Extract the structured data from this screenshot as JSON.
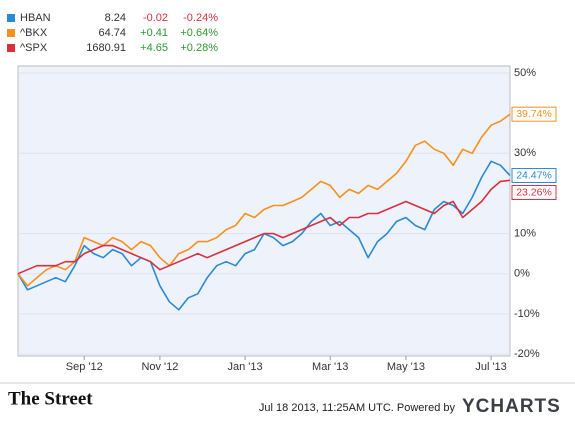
{
  "chart_data": {
    "type": "line",
    "categories": [
      null,
      null,
      null,
      null,
      null,
      null,
      null,
      "Sep '12",
      null,
      null,
      null,
      null,
      null,
      null,
      null,
      "Nov '12",
      null,
      null,
      null,
      null,
      null,
      null,
      null,
      null,
      "Jan '13",
      null,
      null,
      null,
      null,
      null,
      null,
      null,
      null,
      "Mar '13",
      null,
      null,
      null,
      null,
      null,
      null,
      null,
      "May '13",
      null,
      null,
      null,
      null,
      null,
      null,
      null,
      null,
      "Jul '13",
      null,
      null
    ],
    "series": [
      {
        "name": "HBAN",
        "price": "8.24",
        "change": "-0.02",
        "change_pct": "-0.24%",
        "color": "#2a8ad6",
        "values": [
          0,
          -4,
          -3,
          -2,
          -1,
          -2,
          2,
          7,
          5,
          4,
          6,
          5,
          2,
          4,
          3,
          -3,
          -7,
          -9,
          -6,
          -5,
          -1,
          2,
          3,
          2,
          5,
          6,
          10,
          9,
          7,
          8,
          10,
          13,
          15,
          12,
          13,
          11,
          9,
          4,
          8,
          10,
          13,
          14,
          12,
          11,
          16,
          18,
          17,
          15,
          19,
          24,
          28,
          27,
          24.47
        ],
        "value_labels": [
          null,
          null,
          null,
          null,
          null,
          null,
          null,
          null,
          null,
          null,
          null,
          null,
          null,
          null,
          null,
          null,
          null,
          null,
          null,
          null,
          null,
          null,
          null,
          null,
          null,
          null,
          null,
          null,
          null,
          null,
          null,
          null,
          null,
          null,
          null,
          null,
          null,
          null,
          null,
          null,
          null,
          null,
          null,
          null,
          null,
          null,
          null,
          null,
          null,
          null,
          null,
          null,
          "24.47%"
        ]
      },
      {
        "name": "^BKX",
        "price": "64.74",
        "change": "+0.41",
        "change_pct": "+0.64%",
        "color": "#f7901e",
        "values": [
          0,
          -3,
          -1,
          1,
          2,
          1,
          3,
          9,
          8,
          7,
          9,
          8,
          6,
          8,
          7,
          4,
          2,
          5,
          6,
          8,
          8,
          9,
          11,
          12,
          15,
          14,
          16,
          17,
          17,
          18,
          19,
          21,
          23,
          22,
          19,
          21,
          20,
          22,
          21,
          23,
          25,
          28,
          32,
          33,
          31,
          30,
          27,
          31,
          30,
          34,
          37,
          38,
          39.74
        ],
        "value_labels": [
          null,
          null,
          null,
          null,
          null,
          null,
          null,
          null,
          null,
          null,
          null,
          null,
          null,
          null,
          null,
          null,
          null,
          null,
          null,
          null,
          null,
          null,
          null,
          null,
          null,
          null,
          null,
          null,
          null,
          null,
          null,
          null,
          null,
          null,
          null,
          null,
          null,
          null,
          null,
          null,
          null,
          null,
          null,
          null,
          null,
          null,
          null,
          null,
          null,
          null,
          null,
          null,
          "39.74%"
        ]
      },
      {
        "name": "^SPX",
        "price": "1680.91",
        "change": "+4.65",
        "change_pct": "+0.28%",
        "color": "#d9303d",
        "values": [
          0,
          1,
          2,
          2,
          2,
          3,
          3,
          5,
          6,
          7,
          7,
          6,
          5,
          4,
          3,
          1,
          2,
          3,
          4,
          5,
          4,
          5,
          6,
          7,
          8,
          9,
          10,
          10,
          9,
          10,
          11,
          12,
          13,
          14,
          12,
          14,
          14,
          15,
          15,
          16,
          17,
          18,
          17,
          16,
          15,
          17,
          18,
          14,
          16,
          18,
          21,
          23,
          23.26
        ],
        "value_labels": [
          null,
          null,
          null,
          null,
          null,
          null,
          null,
          null,
          null,
          null,
          null,
          null,
          null,
          null,
          null,
          null,
          null,
          null,
          null,
          null,
          null,
          null,
          null,
          null,
          null,
          null,
          null,
          null,
          null,
          null,
          null,
          null,
          null,
          null,
          null,
          null,
          null,
          null,
          null,
          null,
          null,
          null,
          null,
          null,
          null,
          null,
          null,
          null,
          null,
          null,
          null,
          null,
          "23.26%"
        ]
      }
    ],
    "ylim": [
      -20,
      50
    ],
    "yticks": [
      {
        "value": -20,
        "label": "-20%"
      },
      {
        "value": -10,
        "label": "-10%"
      },
      {
        "value": 0,
        "label": "0%"
      },
      {
        "value": 10,
        "label": "10%"
      },
      {
        "value": 30,
        "label": "30%"
      },
      {
        "value": 50,
        "label": "50%"
      }
    ],
    "grid": true
  },
  "footer": {
    "brand": "The Street",
    "timestamp": "Jul 18 2013, 11:25AM UTC. Powered by",
    "provider": "YCHARTS"
  }
}
